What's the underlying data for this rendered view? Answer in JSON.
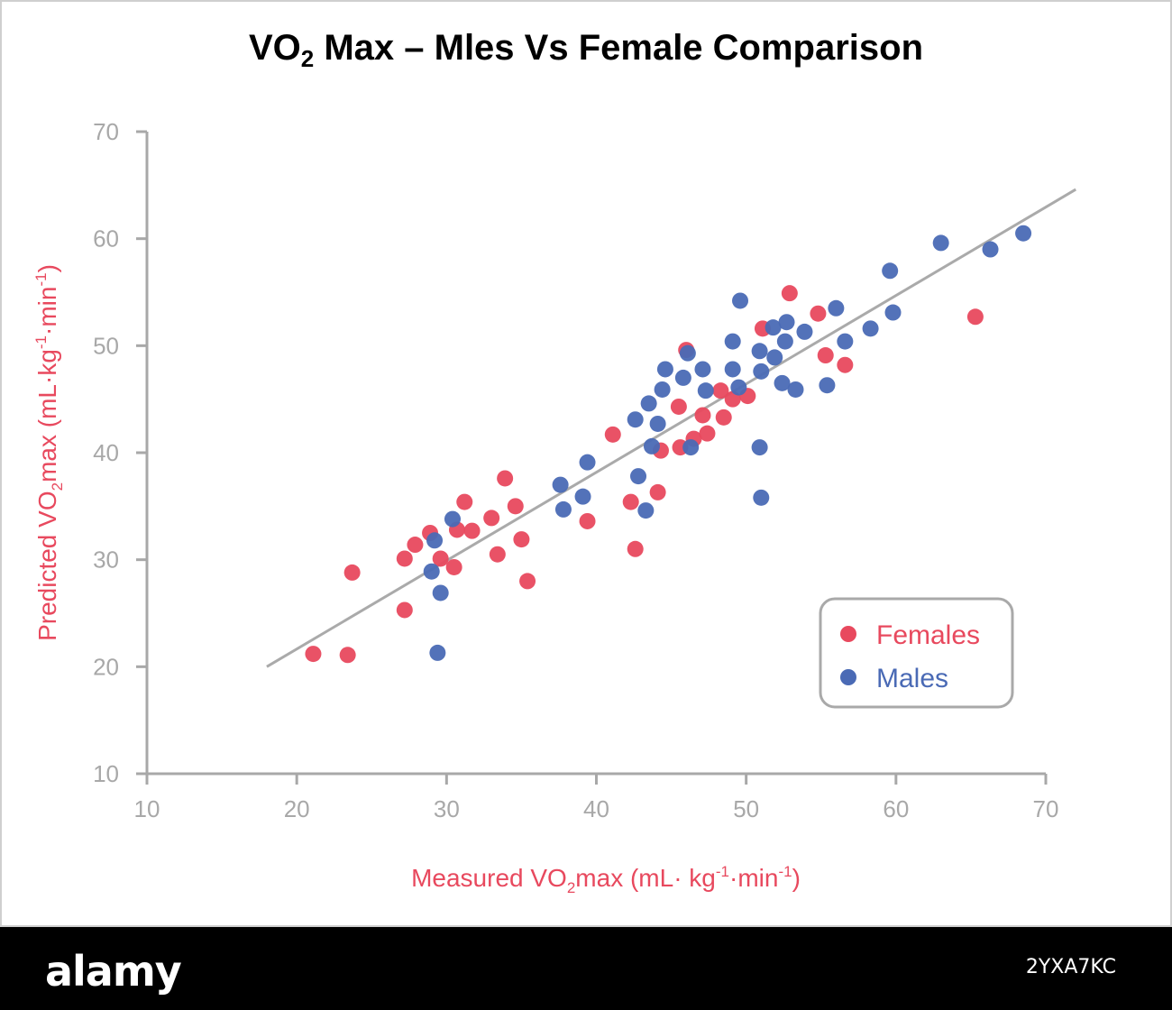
{
  "chart_data": {
    "type": "scatter",
    "title_parts": [
      "VO",
      "2",
      " Max – Mles Vs Female Comparison"
    ],
    "xlabel_parts": [
      "Measured VO",
      "2",
      "max (mL· kg",
      "-1",
      "·min",
      "-1",
      ")"
    ],
    "ylabel_parts": [
      "Predicted VO",
      "2",
      "max (mL·kg",
      "-1",
      "·min",
      "-1",
      ")"
    ],
    "xlim": [
      10,
      70
    ],
    "ylim": [
      10,
      70
    ],
    "xticks": [
      10,
      20,
      30,
      40,
      50,
      60,
      70
    ],
    "yticks": [
      10,
      20,
      30,
      40,
      50,
      60,
      70
    ],
    "grid": false,
    "legend_position": "bottom-right",
    "trend_line": {
      "x": [
        18,
        72
      ],
      "y": [
        20,
        64.6
      ]
    },
    "series": [
      {
        "name": "Females",
        "color": "#e8495e",
        "points": [
          [
            21.1,
            21.2
          ],
          [
            23.4,
            21.1
          ],
          [
            23.7,
            28.8
          ],
          [
            27.2,
            30.1
          ],
          [
            27.2,
            25.3
          ],
          [
            27.9,
            31.4
          ],
          [
            28.9,
            32.5
          ],
          [
            29.6,
            30.1
          ],
          [
            30.5,
            29.3
          ],
          [
            30.7,
            32.8
          ],
          [
            31.2,
            35.4
          ],
          [
            31.7,
            32.7
          ],
          [
            33.0,
            33.9
          ],
          [
            33.4,
            30.5
          ],
          [
            33.9,
            37.6
          ],
          [
            34.6,
            35.0
          ],
          [
            35.0,
            31.9
          ],
          [
            35.4,
            28.0
          ],
          [
            39.4,
            33.6
          ],
          [
            41.1,
            41.7
          ],
          [
            42.3,
            35.4
          ],
          [
            42.6,
            31.0
          ],
          [
            44.1,
            36.3
          ],
          [
            44.3,
            40.2
          ],
          [
            45.5,
            44.3
          ],
          [
            45.6,
            40.5
          ],
          [
            46.0,
            49.6
          ],
          [
            46.5,
            41.3
          ],
          [
            47.1,
            43.5
          ],
          [
            47.4,
            41.8
          ],
          [
            48.3,
            45.8
          ],
          [
            48.5,
            43.3
          ],
          [
            49.1,
            45.0
          ],
          [
            50.1,
            45.3
          ],
          [
            51.1,
            51.6
          ],
          [
            52.9,
            54.9
          ],
          [
            54.8,
            53.0
          ],
          [
            55.3,
            49.1
          ],
          [
            56.6,
            48.2
          ],
          [
            65.3,
            52.7
          ]
        ]
      },
      {
        "name": "Males",
        "color": "#4a6ab5",
        "points": [
          [
            29.0,
            28.9
          ],
          [
            29.2,
            31.8
          ],
          [
            29.4,
            21.3
          ],
          [
            29.6,
            26.9
          ],
          [
            30.4,
            33.8
          ],
          [
            37.6,
            37.0
          ],
          [
            37.8,
            34.7
          ],
          [
            39.1,
            35.9
          ],
          [
            39.4,
            39.1
          ],
          [
            42.6,
            43.1
          ],
          [
            42.8,
            37.8
          ],
          [
            43.3,
            34.6
          ],
          [
            43.5,
            44.6
          ],
          [
            43.7,
            40.6
          ],
          [
            44.1,
            42.7
          ],
          [
            44.4,
            45.9
          ],
          [
            44.6,
            47.8
          ],
          [
            45.8,
            47.0
          ],
          [
            46.1,
            49.3
          ],
          [
            46.3,
            40.5
          ],
          [
            47.1,
            47.8
          ],
          [
            47.3,
            45.8
          ],
          [
            49.1,
            50.4
          ],
          [
            49.1,
            47.8
          ],
          [
            49.5,
            46.1
          ],
          [
            49.6,
            54.2
          ],
          [
            50.9,
            49.5
          ],
          [
            50.9,
            40.5
          ],
          [
            51.0,
            35.8
          ],
          [
            51.0,
            47.6
          ],
          [
            51.8,
            51.7
          ],
          [
            51.9,
            48.9
          ],
          [
            52.4,
            46.5
          ],
          [
            52.6,
            50.4
          ],
          [
            52.7,
            52.2
          ],
          [
            53.3,
            45.9
          ],
          [
            53.9,
            51.3
          ],
          [
            55.4,
            46.3
          ],
          [
            56.0,
            53.5
          ],
          [
            56.6,
            50.4
          ],
          [
            58.3,
            51.6
          ],
          [
            59.6,
            57.0
          ],
          [
            59.8,
            53.1
          ],
          [
            63.0,
            59.6
          ],
          [
            66.3,
            59.0
          ],
          [
            68.5,
            60.5
          ]
        ]
      }
    ]
  },
  "footer": {
    "logo": "alamy",
    "image_id": "2YXA7KC"
  }
}
